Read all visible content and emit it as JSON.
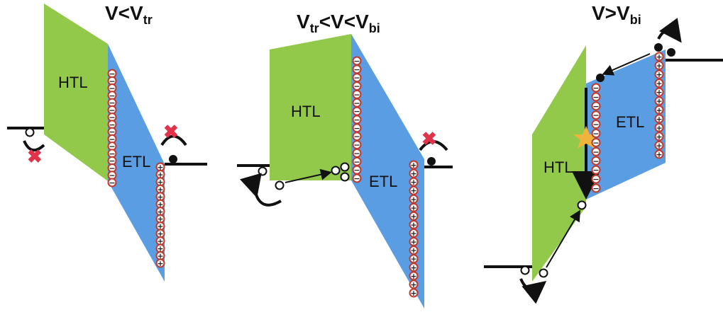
{
  "panels": [
    {
      "title": {
        "main": "V<V",
        "sub": "tr",
        "tail": ""
      },
      "htl_label": "HTL",
      "etl_label": "ETL"
    },
    {
      "title": {
        "main": "V",
        "sub": "tr",
        "mid": "<V<V",
        "sub2": "bi"
      },
      "htl_label": "HTL",
      "etl_label": "ETL"
    },
    {
      "title": {
        "main": "V>V",
        "sub": "bi",
        "tail": ""
      },
      "htl_label": "HTL",
      "etl_label": "ETL"
    }
  ],
  "symbols": {
    "minus": "−",
    "plus": "+"
  },
  "colors": {
    "htl": "#92c94a",
    "etl": "#5a9de3",
    "charge_ring": "#c0392b",
    "blocked": "#e0334a",
    "star": "#f0b43c",
    "line": "#111111"
  }
}
